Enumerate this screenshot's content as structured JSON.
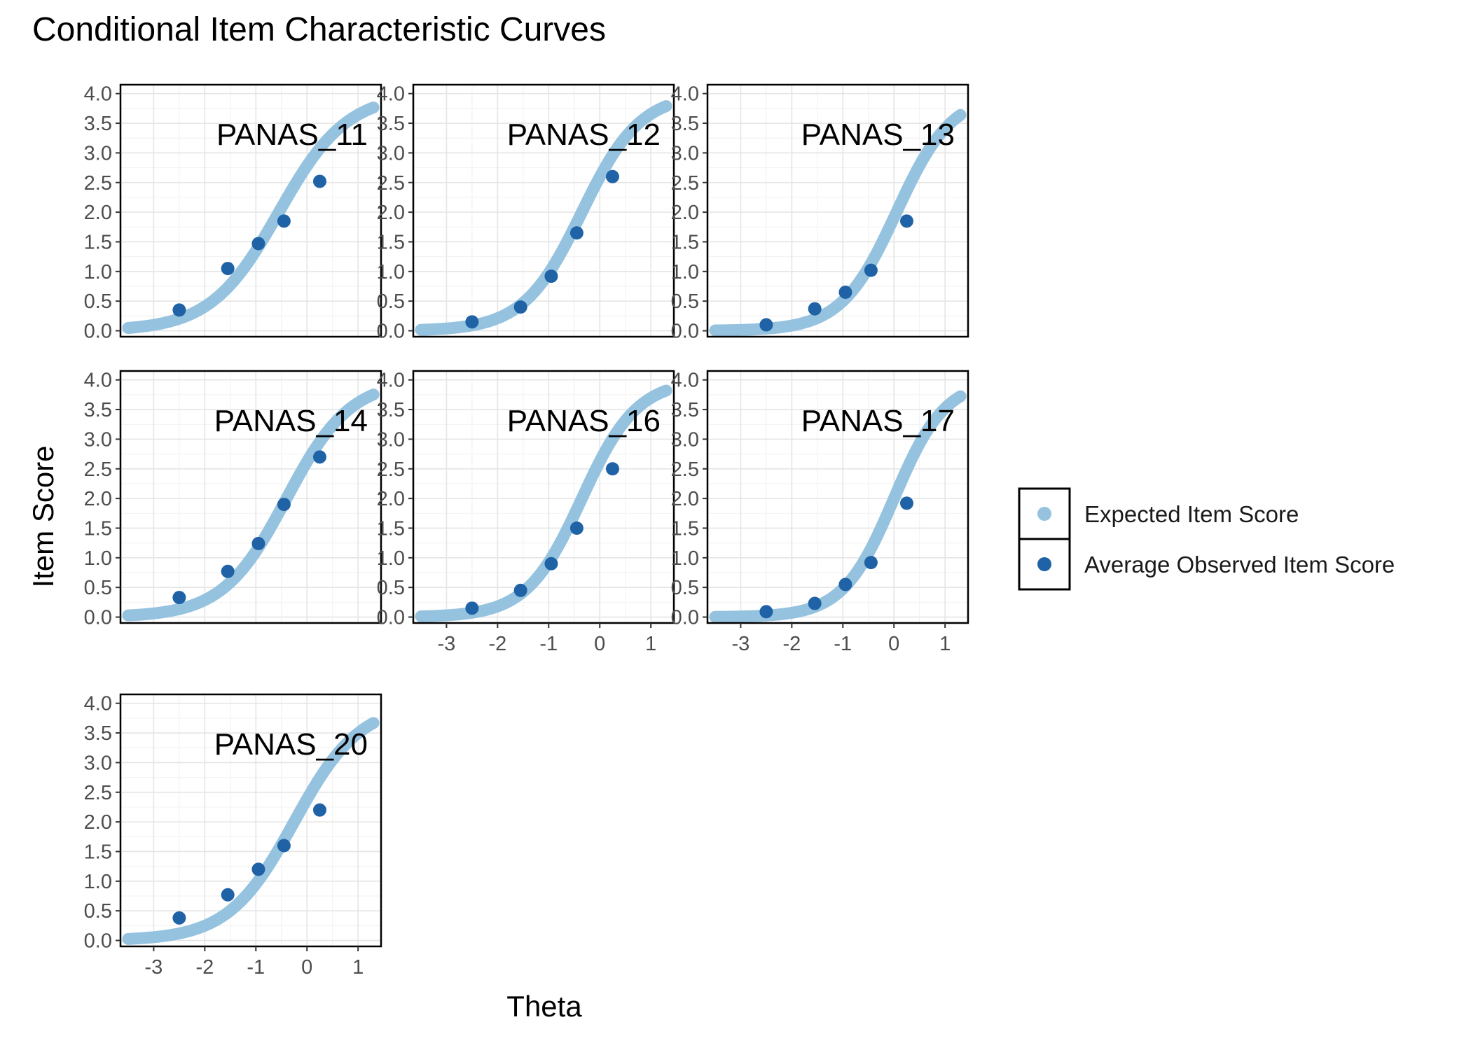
{
  "chart_data": {
    "type": "line",
    "title": "Conditional Item Characteristic Curves",
    "xlabel": "Theta",
    "ylabel": "Item Score",
    "xlim": [
      -3.65,
      1.45
    ],
    "ylim": [
      -0.1,
      4.15
    ],
    "xticks": [
      -3,
      -2,
      -1,
      0,
      1
    ],
    "yticks": [
      0,
      0.5,
      1,
      1.5,
      2,
      2.5,
      3,
      3.5,
      4
    ],
    "ytick_labels": [
      "0.0",
      "0.5",
      "1.0",
      "1.5",
      "2.0",
      "2.5",
      "3.0",
      "3.5",
      "4.0"
    ],
    "xtick_labels": [
      "-3",
      "-2",
      "-1",
      "0",
      "1"
    ],
    "grid": true,
    "theta_range": [
      -3.5,
      1.3
    ],
    "observed_theta": [
      -2.5,
      -1.55,
      -0.95,
      -0.45,
      0.25
    ],
    "colors": {
      "expected": "#95C3DF",
      "observed": "#1F62A6",
      "panel_border": "#000000",
      "grid": "#E5E5E5"
    },
    "legend": {
      "position": "right",
      "entries": [
        {
          "label": "Expected Item Score",
          "color": "#95C3DF"
        },
        {
          "label": "Average Observed Item Score",
          "color": "#1F62A6"
        }
      ]
    },
    "panels": [
      {
        "name": "PANAS_11",
        "expected": {
          "a": 1.5,
          "b": -0.55,
          "max": 4
        },
        "observed": [
          0.35,
          1.05,
          1.47,
          1.85,
          2.52
        ]
      },
      {
        "name": "PANAS_12",
        "expected": {
          "a": 1.75,
          "b": -0.35,
          "max": 4
        },
        "observed": [
          0.15,
          0.4,
          0.92,
          1.65,
          2.6
        ]
      },
      {
        "name": "PANAS_13",
        "expected": {
          "a": 1.85,
          "b": 0.05,
          "max": 4
        },
        "observed": [
          0.1,
          0.37,
          0.65,
          1.02,
          1.85
        ]
      },
      {
        "name": "PANAS_14",
        "expected": {
          "a": 1.6,
          "b": -0.4,
          "max": 4
        },
        "observed": [
          0.33,
          0.77,
          1.24,
          1.9,
          2.7
        ]
      },
      {
        "name": "PANAS_16",
        "expected": {
          "a": 1.85,
          "b": -0.35,
          "max": 4
        },
        "observed": [
          0.15,
          0.45,
          0.9,
          1.5,
          2.5
        ]
      },
      {
        "name": "PANAS_17",
        "expected": {
          "a": 2.0,
          "b": 0.0,
          "max": 4
        },
        "observed": [
          0.09,
          0.23,
          0.55,
          0.92,
          1.92
        ]
      },
      {
        "name": "PANAS_20",
        "expected": {
          "a": 1.55,
          "b": -0.25,
          "max": 4
        },
        "observed": [
          0.38,
          0.77,
          1.2,
          1.6,
          2.2
        ]
      }
    ]
  }
}
